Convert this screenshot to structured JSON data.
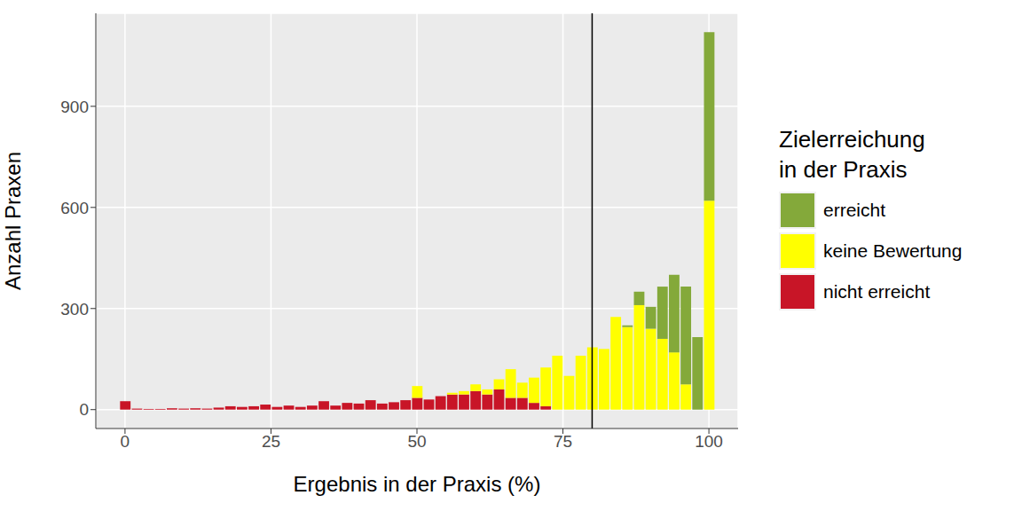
{
  "chart_data": {
    "type": "histogram",
    "x_label": "Ergebnis in der Praxis (%)",
    "y_label": "Anzahl Praxen",
    "legend_title": "Zielerreichung\nin der Praxis",
    "legend": "right",
    "stacked": true,
    "grid": true,
    "bins": [
      -1,
      1,
      3,
      5,
      7,
      9,
      11,
      13,
      15,
      17,
      19,
      21,
      23,
      25,
      27,
      29,
      31,
      33,
      35,
      37,
      39,
      41,
      43,
      45,
      47,
      49,
      51,
      53,
      55,
      57,
      59,
      61,
      63,
      65,
      67,
      69,
      71,
      73,
      75,
      77,
      79,
      81,
      83,
      85,
      87,
      89,
      91,
      93,
      95,
      97,
      99,
      101
    ],
    "series": [
      {
        "name": "erreicht",
        "color": "#84A93A",
        "values": [
          0,
          0,
          0,
          0,
          0,
          0,
          0,
          0,
          0,
          0,
          0,
          0,
          0,
          0,
          0,
          0,
          0,
          0,
          0,
          0,
          0,
          0,
          0,
          0,
          0,
          0,
          0,
          0,
          0,
          0,
          0,
          0,
          0,
          0,
          0,
          0,
          0,
          0,
          0,
          0,
          0,
          0,
          0,
          5,
          40,
          65,
          155,
          230,
          290,
          215,
          500
        ]
      },
      {
        "name": "keine Bewertung",
        "color": "#FFFF00",
        "values": [
          0,
          0,
          0,
          0,
          0,
          0,
          0,
          0,
          0,
          0,
          0,
          0,
          0,
          0,
          0,
          0,
          0,
          0,
          0,
          0,
          0,
          0,
          0,
          0,
          0,
          35,
          0,
          0,
          5,
          10,
          20,
          15,
          30,
          85,
          45,
          75,
          115,
          160,
          100,
          160,
          185,
          180,
          275,
          245,
          310,
          240,
          210,
          170,
          75,
          0,
          620
        ]
      },
      {
        "name": "nicht erreicht",
        "color": "#C81527",
        "values": [
          25,
          3,
          2,
          2,
          4,
          3,
          4,
          3,
          6,
          10,
          8,
          10,
          15,
          8,
          12,
          8,
          12,
          25,
          12,
          20,
          18,
          28,
          18,
          22,
          28,
          35,
          30,
          40,
          45,
          45,
          55,
          45,
          60,
          35,
          35,
          20,
          10,
          0,
          0,
          0,
          0,
          0,
          0,
          0,
          0,
          0,
          0,
          0,
          0,
          0,
          0
        ]
      }
    ],
    "reference_line": 80,
    "xlim": [
      -5,
      105
    ],
    "xticks": [
      0,
      25,
      50,
      75,
      100
    ],
    "ylim": [
      -56,
      1176
    ],
    "yticks": [
      0,
      300,
      600,
      900
    ]
  }
}
